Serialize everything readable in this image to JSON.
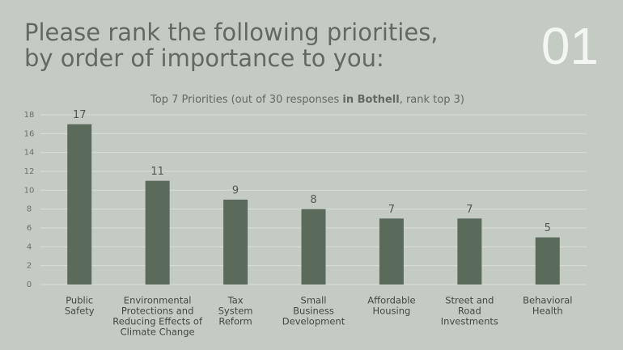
{
  "heading": [
    "Please rank the following priorities,",
    "by order of importance to you:"
  ],
  "slide_number": "01",
  "chart_data": {
    "type": "bar",
    "title_parts": [
      "Top 7 Priorities (out of 30 responses ",
      "in Bothell",
      ", rank top 3)"
    ],
    "categories": [
      [
        "Public",
        "Safety"
      ],
      [
        "Environmental",
        "Protections and",
        "Reducing Effects of",
        "Climate Change"
      ],
      [
        "Tax",
        "System",
        "Reform"
      ],
      [
        "Small",
        "Business",
        "Development"
      ],
      [
        "Affordable",
        "Housing"
      ],
      [
        "Street and",
        "Road",
        "Investments"
      ],
      [
        "Behavioral",
        "Health"
      ]
    ],
    "values": [
      17,
      11,
      9,
      8,
      7,
      7,
      5
    ],
    "color": "#5a6b5c",
    "ylim": [
      0,
      18
    ],
    "yticks": [
      0,
      2,
      4,
      6,
      8,
      10,
      12,
      14,
      16,
      18
    ],
    "grid": true
  }
}
